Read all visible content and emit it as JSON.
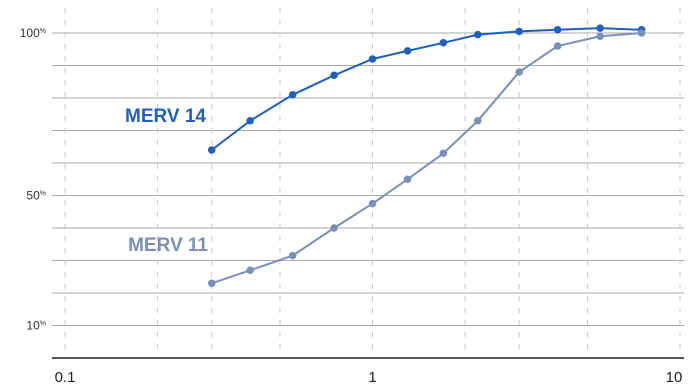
{
  "chart_data": {
    "type": "line",
    "xscale": "log",
    "xlim": [
      0.085,
      11
    ],
    "ylim": [
      0,
      100
    ],
    "grid": true,
    "legend": "inline",
    "x_ticks": [
      {
        "value": 0.1,
        "label": "0.1"
      },
      {
        "value": 1,
        "label": "1"
      },
      {
        "value": 10,
        "label": "10"
      }
    ],
    "y_ticks": [
      {
        "value": 100,
        "num": "100",
        "unit": "%"
      },
      {
        "value": 50,
        "num": "50",
        "unit": "%"
      },
      {
        "value": 10,
        "num": "10",
        "unit": "%"
      }
    ],
    "x": [
      0.3,
      0.4,
      0.55,
      0.75,
      1.0,
      1.3,
      1.7,
      2.2,
      3.0,
      4.0,
      5.5,
      7.5
    ],
    "series": [
      {
        "name": "MERV 14",
        "color": "#1f5fbf",
        "values": [
          64,
          73,
          81,
          87,
          92,
          94.5,
          97,
          99.5,
          100.5,
          101,
          101.5,
          101
        ]
      },
      {
        "name": "MERV 11",
        "color": "#7a8fba",
        "values": [
          23,
          27,
          31.5,
          40,
          47.5,
          55,
          63,
          73,
          88,
          96,
          99,
          100
        ]
      }
    ]
  }
}
